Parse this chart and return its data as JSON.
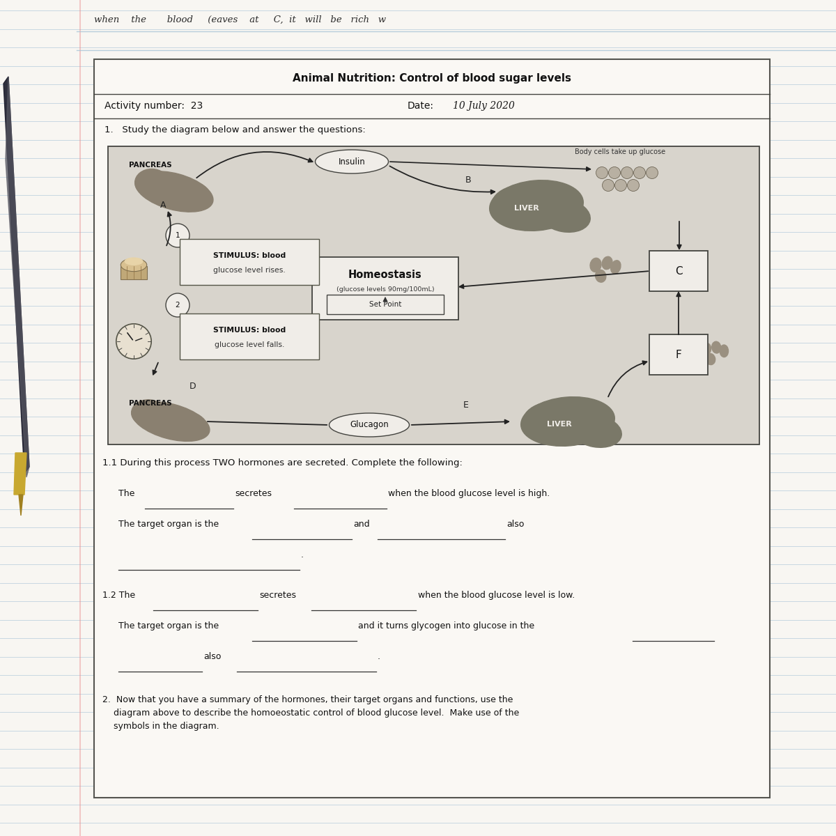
{
  "title": "Animal Nutrition: Control of blood sugar levels",
  "activity_number": "23",
  "date_label": "Date:",
  "date_value": "10 July 2020",
  "question1": "1.   Study the diagram below and answer the questions:",
  "bg_color": "#e8e6e0",
  "paper_color": "#f5f3ef",
  "notebook_line_color": "#a8c4d8",
  "diagram_bg": "#d8d4cc",
  "organ_color": "#8c8878",
  "organ_dark": "#706860",
  "cell_color": "#b0a898",
  "box_fill": "#f0ede8",
  "section_11": "1.1 During this process TWO hormones are secreted. Complete the following:",
  "question2_text": "2.  Now that you have a summary of the hormones, their target organs and functions, use the\n    diagram above to describe the homoeostatic control of blood glucose level.  Make use of the\n    symbols in the diagram."
}
